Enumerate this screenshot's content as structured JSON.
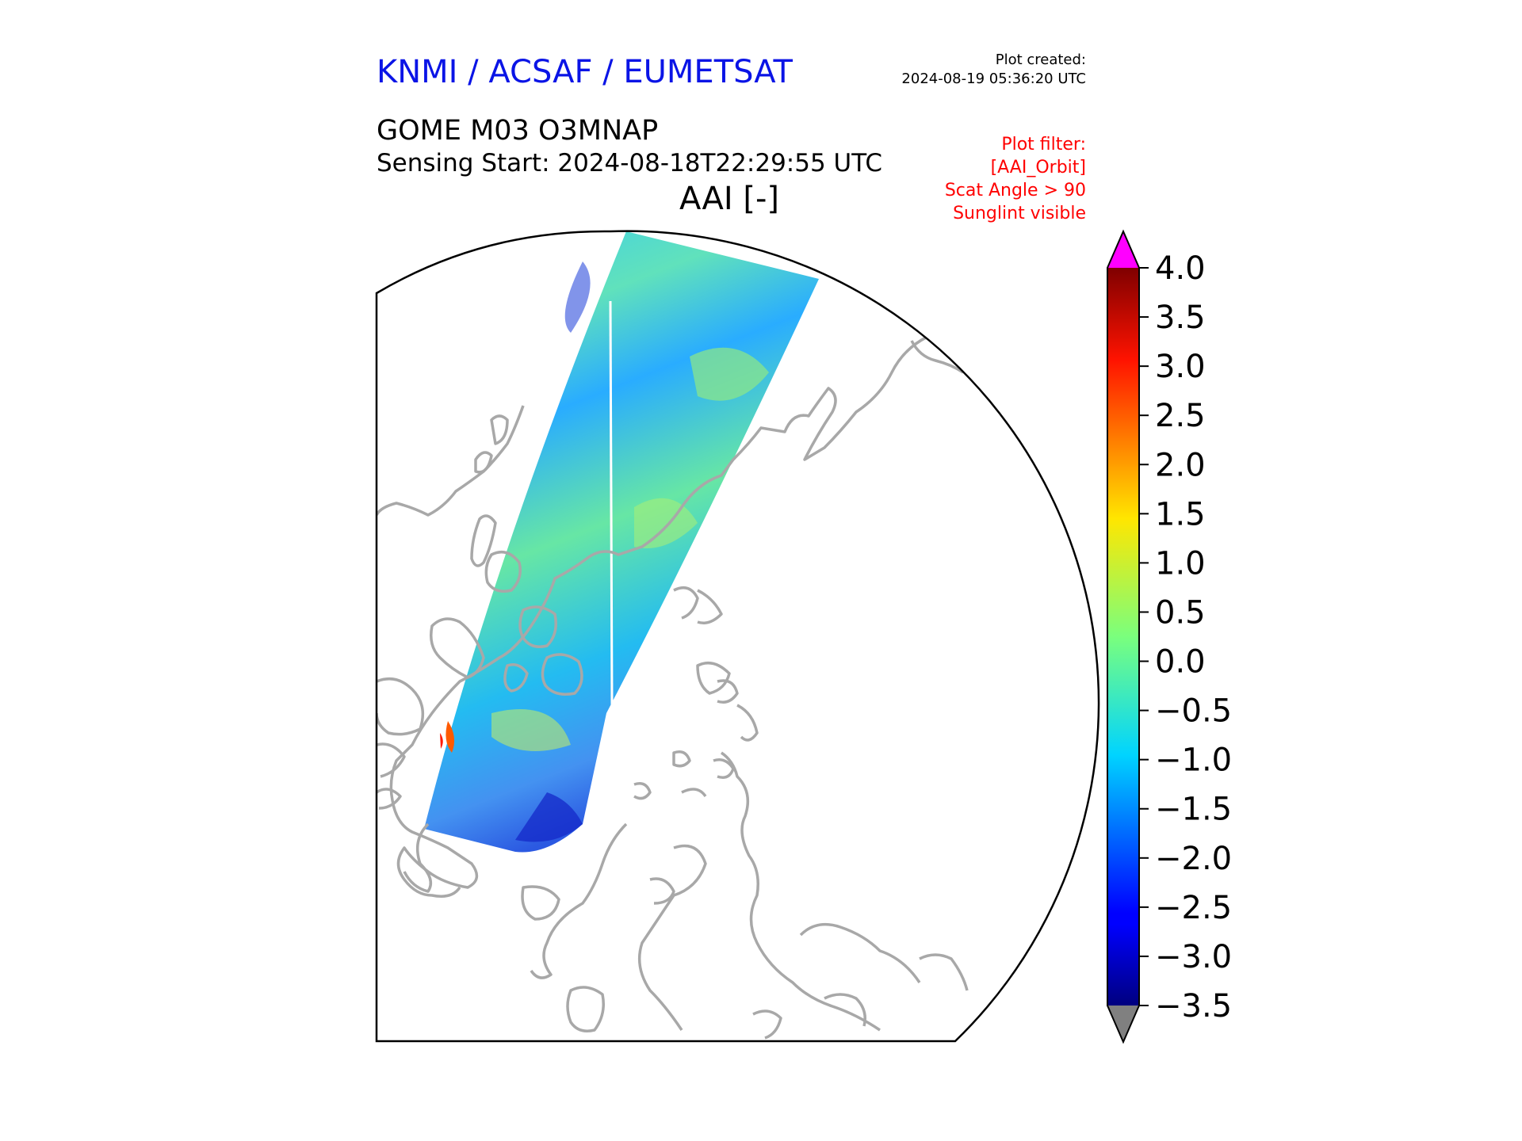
{
  "header": {
    "brand": "KNMI / ACSAF / EUMETSAT",
    "plot_created_label": "Plot created:",
    "plot_created_time": "2024-08-19 05:36:20 UTC"
  },
  "product": {
    "name": "GOME M03 O3MNAP",
    "sensing_start": "Sensing Start: 2024-08-18T22:29:55 UTC",
    "variable_title": "AAI [-]"
  },
  "plot_filter": {
    "lines": [
      "Plot filter:",
      "[AAI_Orbit]",
      "Scat Angle > 90",
      "Sunglint visible"
    ]
  },
  "colorbar": {
    "min": -3.5,
    "max": 4.0,
    "ticks": [
      "4.0",
      "3.5",
      "3.0",
      "2.5",
      "2.0",
      "1.5",
      "1.0",
      "0.5",
      "0.0",
      "−0.5",
      "−1.0",
      "−1.5",
      "−2.0",
      "−2.5",
      "−3.0",
      "−3.5"
    ],
    "tick_values": [
      4.0,
      3.5,
      3.0,
      2.5,
      2.0,
      1.5,
      1.0,
      0.5,
      0.0,
      -0.5,
      -1.0,
      -1.5,
      -2.0,
      -2.5,
      -3.0,
      -3.5
    ],
    "colormap": "jet",
    "over_color": "#ff00ff",
    "under_color": "#808080"
  },
  "map": {
    "projection": "north-polar-stereographic",
    "coastline_color": "#a8a8a8",
    "swath_colormap": "jet"
  }
}
